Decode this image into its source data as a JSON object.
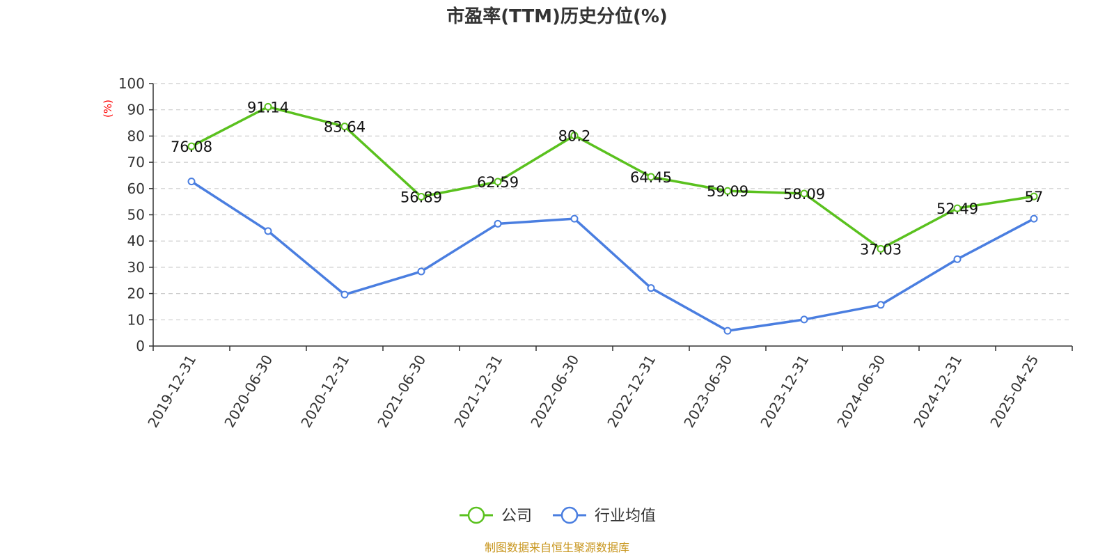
{
  "chart_data": {
    "type": "line",
    "title": "市盈率(TTM)历史分位(%)",
    "ylabel": "(%)",
    "ylim": [
      0,
      100
    ],
    "yticks": [
      0,
      10,
      20,
      30,
      40,
      50,
      60,
      70,
      80,
      90,
      100
    ],
    "categories": [
      "2019-12-31",
      "2020-06-30",
      "2020-12-31",
      "2021-06-30",
      "2021-12-31",
      "2022-06-30",
      "2022-12-31",
      "2023-06-30",
      "2023-12-31",
      "2024-06-30",
      "2024-12-31",
      "2025-04-25"
    ],
    "series": [
      {
        "name": "公司",
        "color": "#5ac11e",
        "values": [
          76.08,
          91.14,
          83.64,
          56.89,
          62.59,
          80.2,
          64.45,
          59.09,
          58.09,
          37.03,
          52.49,
          57
        ],
        "labels": [
          "76.08",
          "91.14",
          "83.64",
          "56.89",
          "62.59",
          "80.2",
          "64.45",
          "59.09",
          "58.09",
          "37.03",
          "52.49",
          "57"
        ]
      },
      {
        "name": "行业均值",
        "color": "#4a7ee0",
        "values": [
          62.7,
          43.8,
          19.6,
          28.4,
          46.6,
          48.5,
          22.1,
          5.8,
          10.1,
          15.7,
          33.1,
          48.5
        ]
      }
    ],
    "grid": true,
    "legend_position": "bottom-center"
  },
  "source_note": {
    "text": "制图数据来自恒生聚源数据库",
    "color": "#c8961e"
  }
}
